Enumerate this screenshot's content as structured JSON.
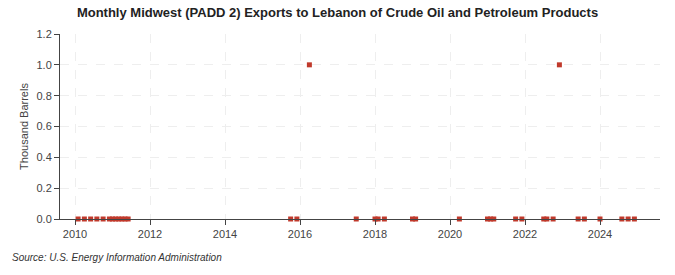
{
  "chart_data": {
    "type": "scatter",
    "title": "Monthly Midwest (PADD 2) Exports to Lebanon of Crude Oil and Petroleum Products",
    "ylabel": "Thousand Barrels",
    "annotations": [
      "Source: U.S. Energy Information Administration"
    ],
    "color": "#c0392b",
    "marker": "square",
    "grid": true,
    "xlim": [
      2009.6,
      2025.6
    ],
    "xticks": [
      2010,
      2012,
      2014,
      2016,
      2018,
      2020,
      2022,
      2024
    ],
    "ylim": [
      0.0,
      1.2
    ],
    "yticks": [
      {
        "value": 0.0,
        "label": "0.0"
      },
      0.2,
      0.4,
      0.6,
      0.8,
      {
        "value": 1.0,
        "label": "1.0"
      },
      1.2
    ],
    "x": [
      2010.083,
      2010.25,
      2010.417,
      2010.583,
      2010.75,
      2010.917,
      2011.0,
      2011.083,
      2011.167,
      2011.25,
      2011.333,
      2011.417,
      2015.75,
      2015.917,
      2016.25,
      2017.5,
      2018.0,
      2018.083,
      2018.25,
      2019.0,
      2019.083,
      2020.25,
      2021.0,
      2021.083,
      2021.167,
      2021.75,
      2021.917,
      2022.5,
      2022.583,
      2022.75,
      2022.917,
      2023.417,
      2023.583,
      2024.0,
      2024.583,
      2024.75,
      2024.917
    ],
    "values": [
      0.0,
      0.0,
      0.0,
      0.0,
      0.0,
      0.0,
      0.0,
      0.0,
      0.0,
      0.0,
      0.0,
      0.0,
      0.0,
      0.0,
      1.0,
      0.0,
      0.0,
      0.0,
      0.0,
      0.0,
      0.0,
      0.0,
      0.0,
      0.0,
      0.0,
      0.0,
      0.0,
      0.0,
      0.0,
      0.0,
      1.0,
      0.0,
      0.0,
      0.0,
      0.0,
      0.0,
      0.0
    ]
  }
}
